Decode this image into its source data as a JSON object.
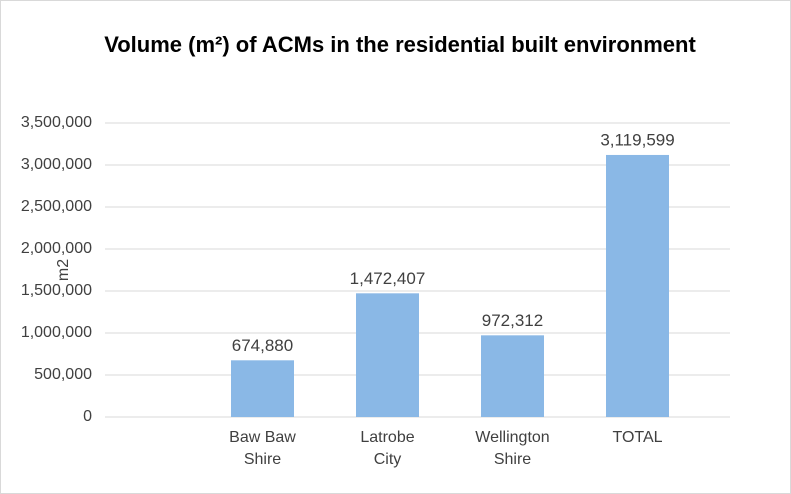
{
  "chart_data": {
    "type": "bar",
    "title": "Volume (m²) of ACMs in the residential built environment",
    "y_label": "m2",
    "categories": [
      "Baw Baw Shire",
      "Latrobe City",
      "Wellington Shire",
      "TOTAL"
    ],
    "values": [
      674880,
      1472407,
      972312,
      3119599
    ],
    "value_labels": [
      "674,880",
      "1,472,407",
      "972,312",
      "3,119,599"
    ],
    "color": "#8ab8e6",
    "ylim": [
      0,
      3500000
    ],
    "yticks": [
      0,
      {
        "value": 500000,
        "label": "500,000"
      },
      {
        "value": 1000000,
        "label": "1,000,000"
      },
      {
        "value": 1500000,
        "label": "1,500,000"
      },
      {
        "value": 2000000,
        "label": "2,000,000"
      },
      {
        "value": 2500000,
        "label": "2,500,000"
      },
      {
        "value": 3000000,
        "label": "3,000,000"
      },
      {
        "value": 3500000,
        "label": "3,500,000"
      }
    ],
    "grid": true
  }
}
